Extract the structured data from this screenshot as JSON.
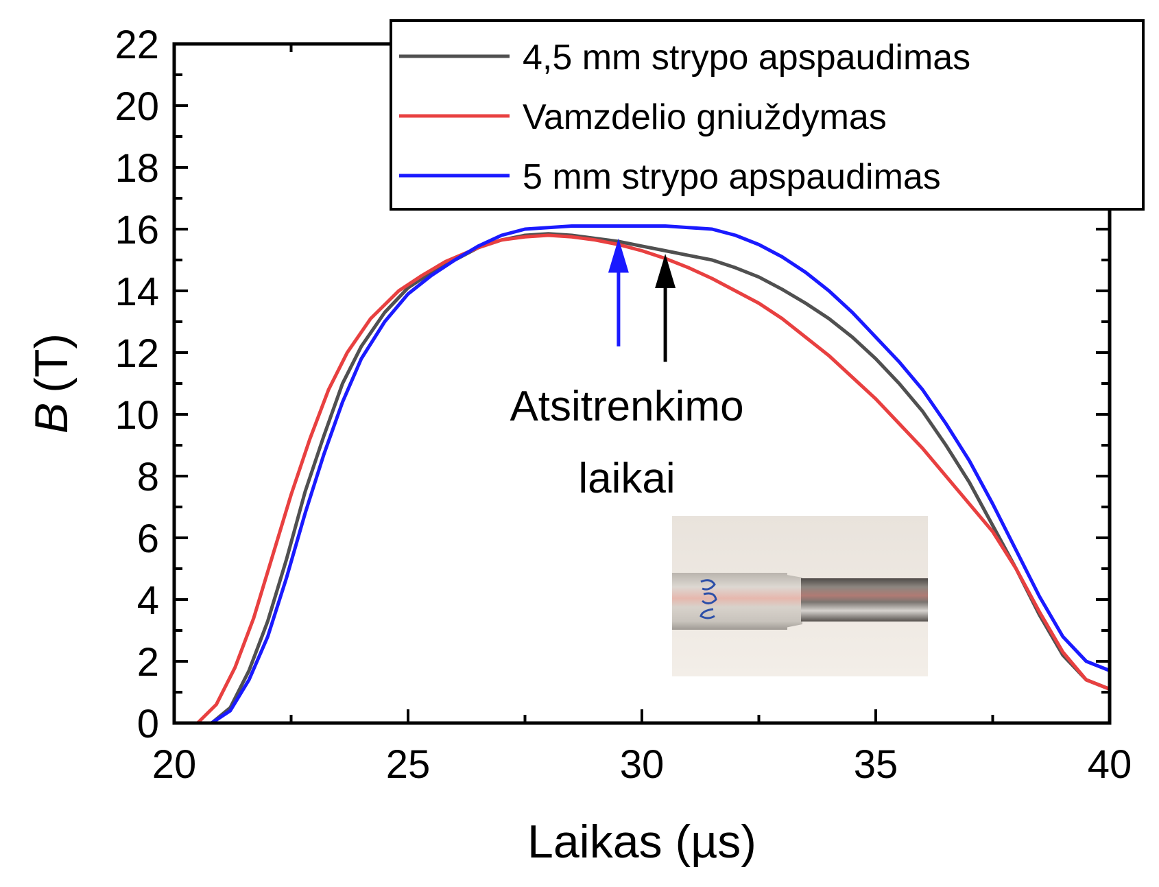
{
  "chart_data": {
    "type": "line",
    "xlabel": "Laikas (µs)",
    "ylabel_symbol": "B",
    "ylabel_unit": "(T)",
    "xlim": [
      20,
      40
    ],
    "ylim": [
      0,
      22
    ],
    "xticks": [
      20,
      25,
      30,
      35,
      40
    ],
    "yticks": [
      0,
      2,
      4,
      6,
      8,
      10,
      12,
      14,
      16,
      18,
      20,
      22
    ],
    "grid": false,
    "legend_position": "top-right",
    "series": [
      {
        "name": "4,5 mm strypo apspaudimas",
        "color": "#505050",
        "points": [
          [
            20.8,
            0
          ],
          [
            21.2,
            0.5
          ],
          [
            21.6,
            1.7
          ],
          [
            22.0,
            3.3
          ],
          [
            22.4,
            5.3
          ],
          [
            22.8,
            7.5
          ],
          [
            23.2,
            9.3
          ],
          [
            23.6,
            11.0
          ],
          [
            24.0,
            12.2
          ],
          [
            24.5,
            13.3
          ],
          [
            25.0,
            14.1
          ],
          [
            25.5,
            14.6
          ],
          [
            26.0,
            15.0
          ],
          [
            26.5,
            15.4
          ],
          [
            27.0,
            15.65
          ],
          [
            27.5,
            15.8
          ],
          [
            28.0,
            15.85
          ],
          [
            28.5,
            15.8
          ],
          [
            29.0,
            15.7
          ],
          [
            29.5,
            15.6
          ],
          [
            30.0,
            15.45
          ],
          [
            30.5,
            15.3
          ],
          [
            31.0,
            15.15
          ],
          [
            31.5,
            15.0
          ],
          [
            32.0,
            14.75
          ],
          [
            32.5,
            14.45
          ],
          [
            33.0,
            14.05
          ],
          [
            33.5,
            13.6
          ],
          [
            34.0,
            13.1
          ],
          [
            34.5,
            12.5
          ],
          [
            35.0,
            11.8
          ],
          [
            35.5,
            11.0
          ],
          [
            36.0,
            10.1
          ],
          [
            36.5,
            9.0
          ],
          [
            37.0,
            7.8
          ],
          [
            37.5,
            6.4
          ],
          [
            38.0,
            5.0
          ],
          [
            38.5,
            3.5
          ],
          [
            39.0,
            2.2
          ],
          [
            39.5,
            1.4
          ],
          [
            40.0,
            1.1
          ]
        ]
      },
      {
        "name": "Vamzdelio gniuždymas",
        "color": "#e84040",
        "points": [
          [
            20.5,
            0
          ],
          [
            20.9,
            0.6
          ],
          [
            21.3,
            1.8
          ],
          [
            21.7,
            3.4
          ],
          [
            22.1,
            5.4
          ],
          [
            22.5,
            7.4
          ],
          [
            22.9,
            9.2
          ],
          [
            23.3,
            10.8
          ],
          [
            23.7,
            12.0
          ],
          [
            24.2,
            13.1
          ],
          [
            24.8,
            14.0
          ],
          [
            25.3,
            14.5
          ],
          [
            25.8,
            14.95
          ],
          [
            26.5,
            15.4
          ],
          [
            27.0,
            15.65
          ],
          [
            27.5,
            15.75
          ],
          [
            28.0,
            15.8
          ],
          [
            28.5,
            15.75
          ],
          [
            29.0,
            15.65
          ],
          [
            29.5,
            15.5
          ],
          [
            30.0,
            15.3
          ],
          [
            30.5,
            15.05
          ],
          [
            31.0,
            14.75
          ],
          [
            31.5,
            14.4
          ],
          [
            32.0,
            14.0
          ],
          [
            32.5,
            13.6
          ],
          [
            33.0,
            13.1
          ],
          [
            33.5,
            12.5
          ],
          [
            34.0,
            11.9
          ],
          [
            34.5,
            11.2
          ],
          [
            35.0,
            10.5
          ],
          [
            35.5,
            9.7
          ],
          [
            36.0,
            8.9
          ],
          [
            36.5,
            8.0
          ],
          [
            37.0,
            7.1
          ],
          [
            37.5,
            6.2
          ],
          [
            38.0,
            5.0
          ],
          [
            38.5,
            3.6
          ],
          [
            39.0,
            2.3
          ],
          [
            39.5,
            1.4
          ],
          [
            40.0,
            1.1
          ]
        ]
      },
      {
        "name": "5 mm strypo apspaudimas",
        "color": "#1a1aff",
        "points": [
          [
            20.8,
            0
          ],
          [
            21.2,
            0.4
          ],
          [
            21.6,
            1.4
          ],
          [
            22.0,
            2.8
          ],
          [
            22.4,
            4.7
          ],
          [
            22.8,
            6.8
          ],
          [
            23.2,
            8.7
          ],
          [
            23.6,
            10.4
          ],
          [
            24.0,
            11.8
          ],
          [
            24.5,
            13.0
          ],
          [
            25.0,
            13.9
          ],
          [
            25.5,
            14.5
          ],
          [
            26.0,
            15.0
          ],
          [
            26.5,
            15.45
          ],
          [
            27.0,
            15.8
          ],
          [
            27.5,
            16.0
          ],
          [
            28.0,
            16.05
          ],
          [
            28.5,
            16.1
          ],
          [
            29.0,
            16.1
          ],
          [
            29.5,
            16.1
          ],
          [
            30.0,
            16.1
          ],
          [
            30.5,
            16.1
          ],
          [
            31.0,
            16.05
          ],
          [
            31.5,
            16.0
          ],
          [
            32.0,
            15.8
          ],
          [
            32.5,
            15.5
          ],
          [
            33.0,
            15.1
          ],
          [
            33.5,
            14.6
          ],
          [
            34.0,
            14.0
          ],
          [
            34.5,
            13.3
          ],
          [
            35.0,
            12.5
          ],
          [
            35.5,
            11.7
          ],
          [
            36.0,
            10.8
          ],
          [
            36.5,
            9.7
          ],
          [
            37.0,
            8.5
          ],
          [
            37.5,
            7.1
          ],
          [
            38.0,
            5.6
          ],
          [
            38.5,
            4.1
          ],
          [
            39.0,
            2.8
          ],
          [
            39.5,
            2.0
          ],
          [
            40.0,
            1.7
          ]
        ]
      }
    ],
    "annotation": {
      "line1": "Atsitrenkimo",
      "line2": "laikai",
      "arrows": [
        {
          "x": 29.5,
          "y_from": 12.2,
          "y_to": 15.7,
          "color": "#1a1aff"
        },
        {
          "x": 30.5,
          "y_from": 11.7,
          "y_to": 15.2,
          "color": "#000000"
        }
      ]
    }
  }
}
